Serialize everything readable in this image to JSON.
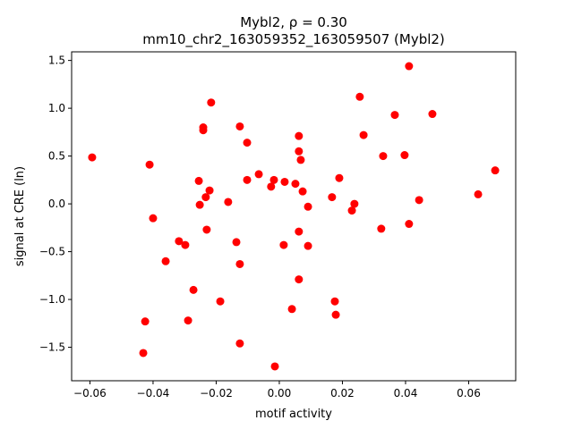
{
  "chart_data": {
    "type": "scatter",
    "title": "Mybl2, ρ = 0.30",
    "subtitle": "mm10_chr2_163059352_163059507 (Mybl2)",
    "xlabel": "motif activity",
    "ylabel": "signal at CRE (ln)",
    "xlim": [
      -0.0658,
      0.0749
    ],
    "ylim": [
      -1.85,
      1.59
    ],
    "xticks": [
      -0.06,
      -0.04,
      -0.02,
      0.0,
      0.02,
      0.04,
      0.06
    ],
    "xtick_labels": [
      "−0.06",
      "−0.04",
      "−0.02",
      "0.00",
      "0.02",
      "0.04",
      "0.06"
    ],
    "yticks": [
      -1.5,
      -1.0,
      -0.5,
      0.0,
      0.5,
      1.0,
      1.5
    ],
    "ytick_labels": [
      "−1.5",
      "−1.0",
      "−0.5",
      "0.0",
      "0.5",
      "1.0",
      "1.5"
    ],
    "grid": false,
    "color": "#ff0000",
    "points": [
      [
        -0.0593,
        0.486
      ],
      [
        -0.0411,
        0.41
      ],
      [
        -0.04,
        -0.15
      ],
      [
        -0.036,
        -0.6
      ],
      [
        -0.0425,
        -1.23
      ],
      [
        -0.0431,
        -1.56
      ],
      [
        -0.0318,
        -0.39
      ],
      [
        -0.0298,
        -0.43
      ],
      [
        -0.0272,
        -0.9
      ],
      [
        -0.0289,
        -1.22
      ],
      [
        -0.0255,
        0.24
      ],
      [
        -0.0252,
        -0.01
      ],
      [
        -0.0241,
        0.8
      ],
      [
        -0.0241,
        0.77
      ],
      [
        -0.0233,
        0.07
      ],
      [
        -0.0221,
        0.14
      ],
      [
        -0.023,
        -0.27
      ],
      [
        -0.0216,
        1.06
      ],
      [
        -0.0187,
        -1.02
      ],
      [
        -0.0162,
        0.02
      ],
      [
        -0.0136,
        -0.4
      ],
      [
        -0.0125,
        0.81
      ],
      [
        -0.0125,
        -0.63
      ],
      [
        -0.0125,
        -1.46
      ],
      [
        -0.0102,
        0.64
      ],
      [
        -0.0102,
        0.25
      ],
      [
        -0.0065,
        0.31
      ],
      [
        -0.0026,
        0.18
      ],
      [
        -0.0017,
        0.25
      ],
      [
        -0.0014,
        -1.7
      ],
      [
        0.0017,
        0.23
      ],
      [
        0.0014,
        -0.43
      ],
      [
        0.004,
        -1.1
      ],
      [
        0.0051,
        0.21
      ],
      [
        0.0062,
        0.71
      ],
      [
        0.0062,
        0.55
      ],
      [
        0.0068,
        0.46
      ],
      [
        0.0062,
        -0.29
      ],
      [
        0.0062,
        -0.79
      ],
      [
        0.0074,
        0.13
      ],
      [
        0.0091,
        -0.03
      ],
      [
        0.0091,
        -0.44
      ],
      [
        0.0167,
        0.07
      ],
      [
        0.0176,
        -1.02
      ],
      [
        0.0179,
        -1.16
      ],
      [
        0.019,
        0.27
      ],
      [
        0.023,
        -0.07
      ],
      [
        0.0238,
        0.0
      ],
      [
        0.0255,
        1.12
      ],
      [
        0.0267,
        0.72
      ],
      [
        0.0323,
        -0.26
      ],
      [
        0.0329,
        0.5
      ],
      [
        0.0366,
        0.93
      ],
      [
        0.0397,
        0.51
      ],
      [
        0.0411,
        1.44
      ],
      [
        0.0411,
        -0.21
      ],
      [
        0.0443,
        0.04
      ],
      [
        0.0485,
        0.94
      ],
      [
        0.063,
        0.1
      ],
      [
        0.0684,
        0.35
      ]
    ]
  }
}
